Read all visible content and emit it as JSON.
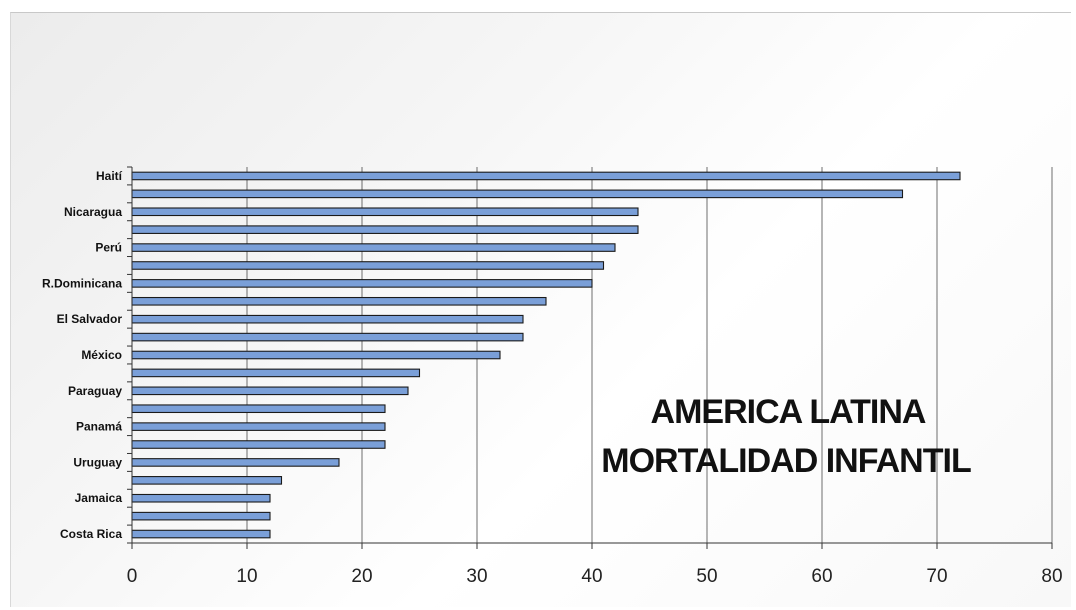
{
  "chart_data": {
    "type": "bar",
    "orientation": "horizontal",
    "title_lines": [
      "AMERICA LATINA",
      "MORTALIDAD INFANTIL"
    ],
    "title_position": "bottom-right inside plot",
    "categories": [
      "Haití",
      "",
      "Nicaragua",
      "",
      "Perú",
      "",
      "R.Dominicana",
      "",
      "El Salvador",
      "",
      "México",
      "",
      "Paraguay",
      "",
      "Panamá",
      "",
      "Uruguay",
      "",
      "Jamaica",
      "",
      "Costa Rica"
    ],
    "values": [
      72,
      67,
      44,
      44,
      42,
      41,
      40,
      36,
      34,
      34,
      32,
      25,
      24,
      22,
      22,
      22,
      18,
      13,
      12,
      12,
      12
    ],
    "xlim": [
      0,
      80
    ],
    "x_ticks": [
      "0",
      "10",
      "20",
      "30",
      "40",
      "50",
      "60",
      "70",
      "80"
    ],
    "grid": "vertical lines",
    "bar_color": "#7a9fd8",
    "bar_edge_color": "#1a1a1a"
  }
}
